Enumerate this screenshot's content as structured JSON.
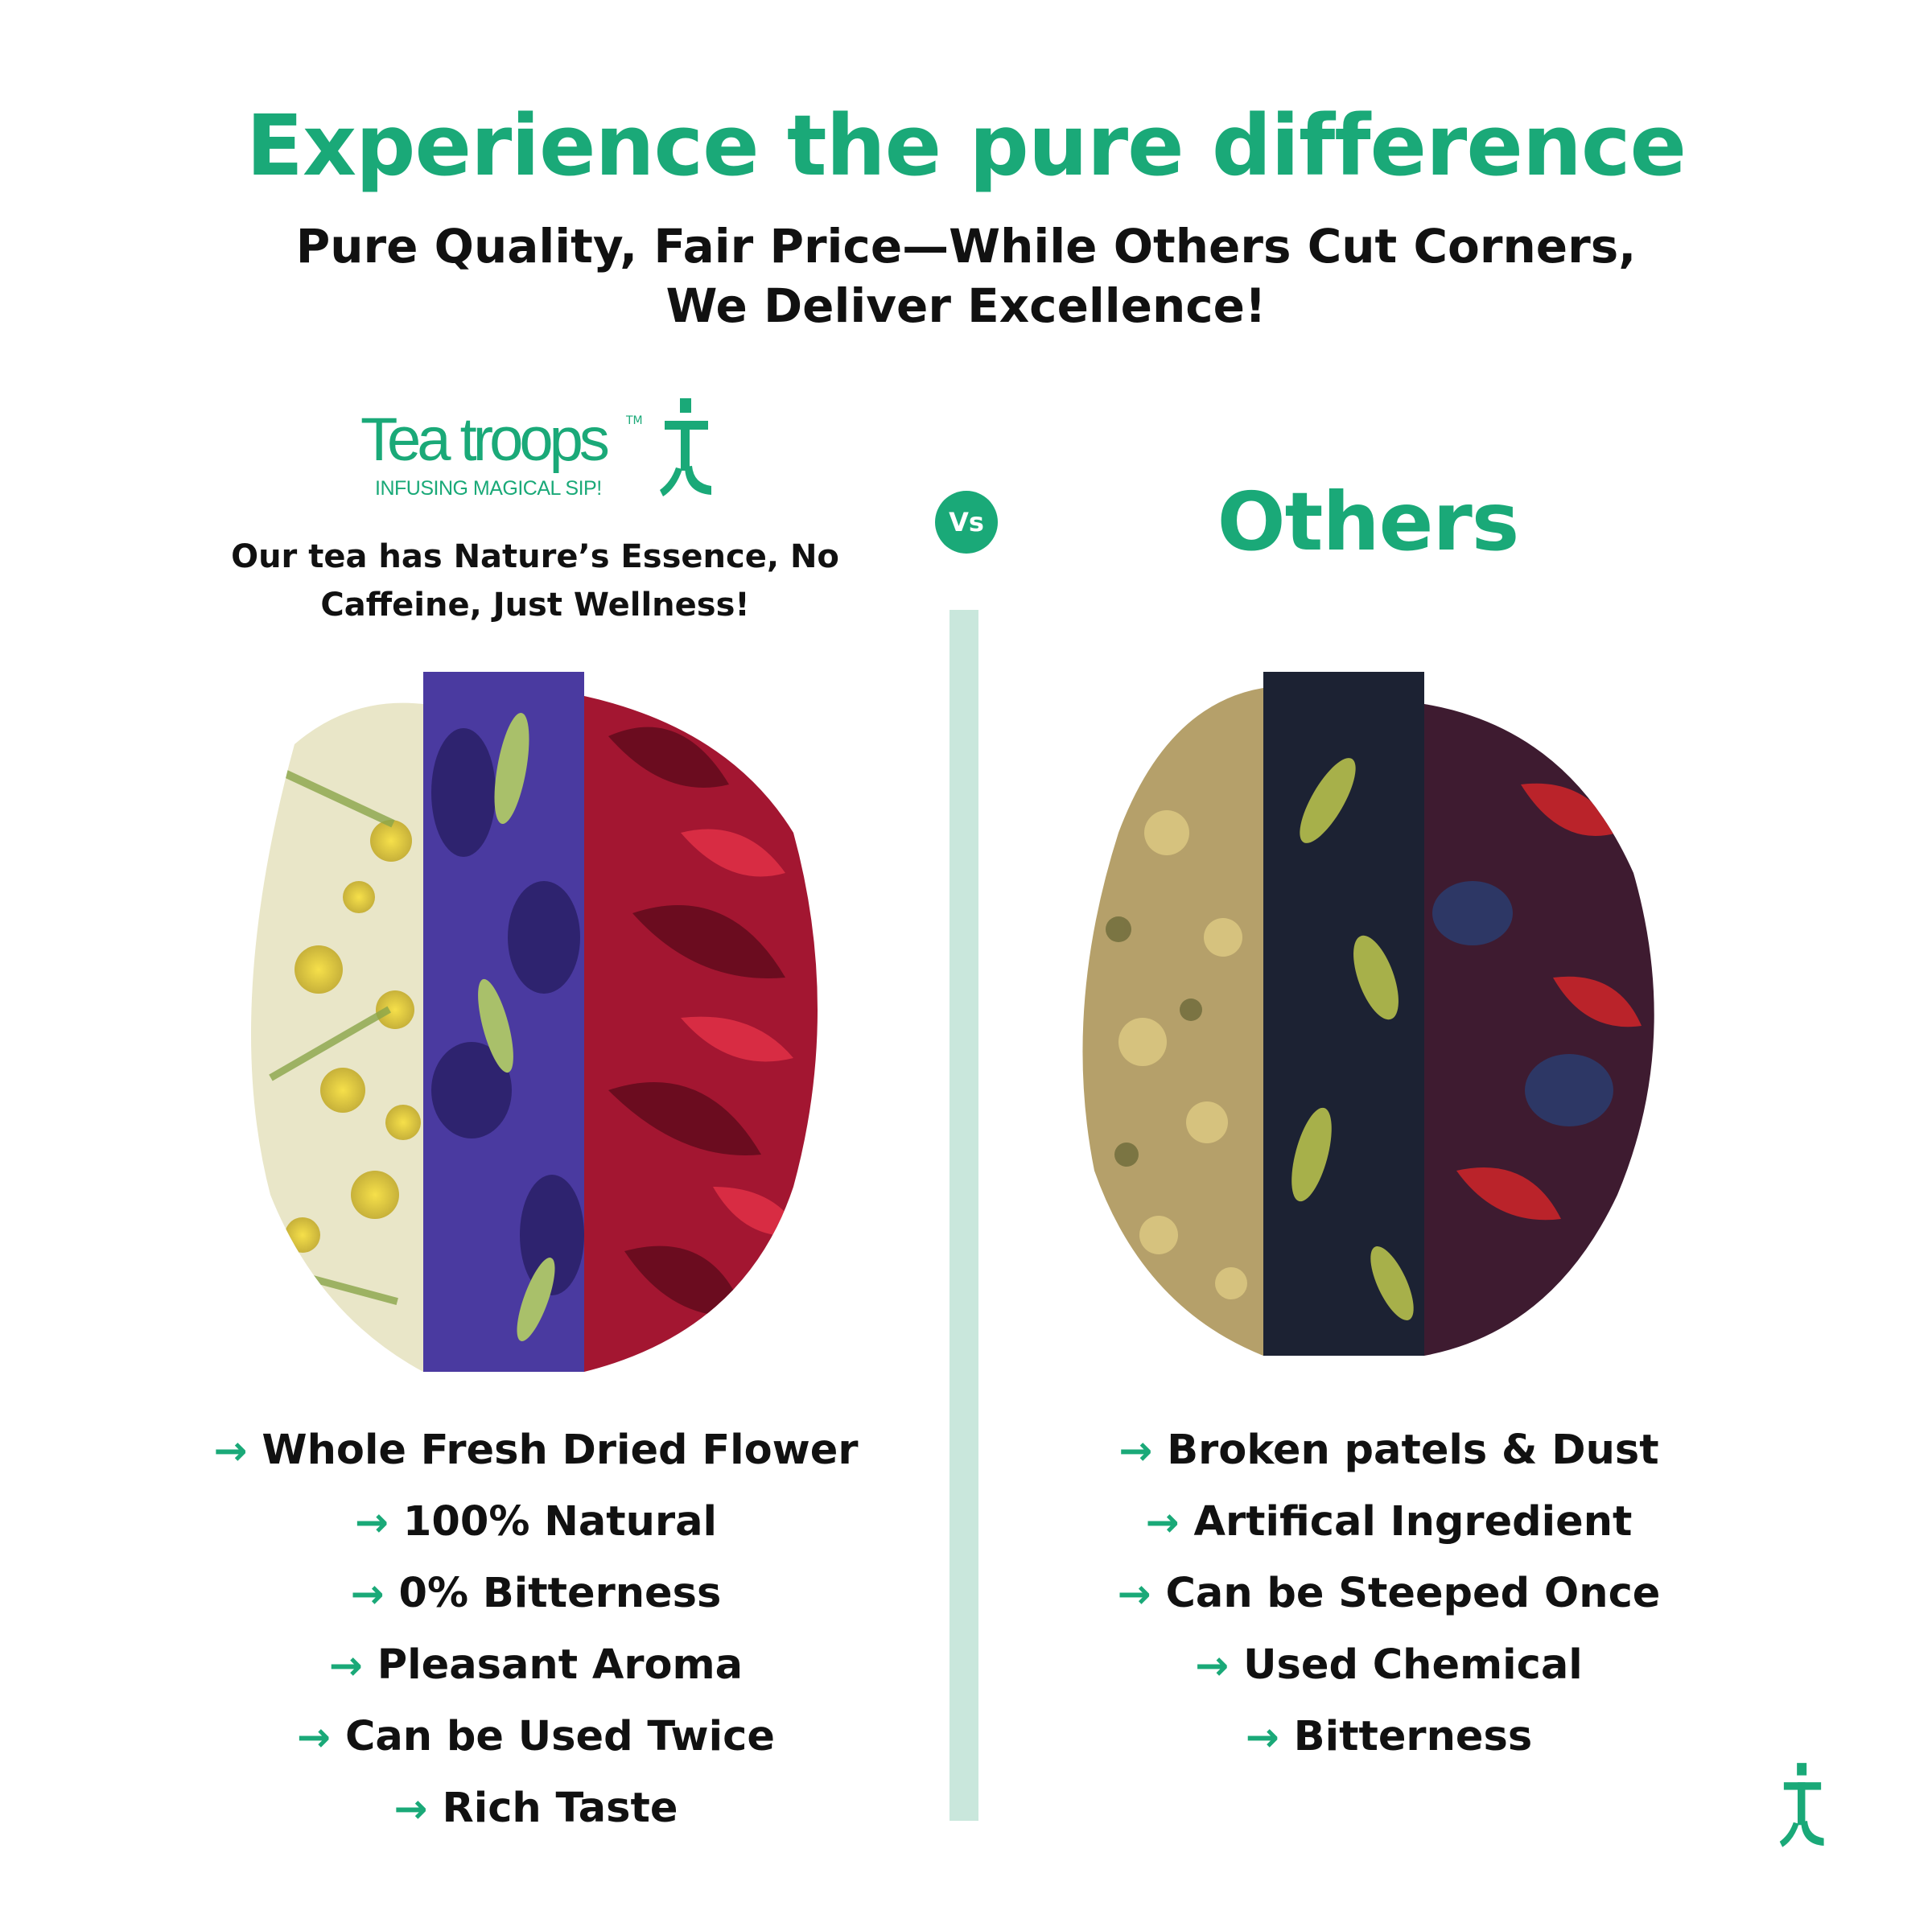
{
  "header": {
    "title": "Experience the pure difference",
    "subtitle_line1": "Pure Quality, Fair Price—While Others Cut Corners,",
    "subtitle_line2": "We Deliver Excellence!"
  },
  "brand": {
    "name": "Tea troops",
    "trademark": "TM",
    "tagline": "INFUSING MAGICAL SIP!",
    "description": "Our tea has Nature’s Essence, No Caffeine, Just Wellness!"
  },
  "vs": {
    "label": "Vs"
  },
  "others": {
    "title": "Others"
  },
  "ours_features": [
    "Whole Fresh Dried Flower",
    "100% Natural",
    "0% Bitterness",
    "Pleasant Aroma",
    "Can be Used Twice",
    "Rich Taste"
  ],
  "others_features": [
    "Broken patels & Dust",
    "Artifical Ingredient",
    "Can be Steeped Once",
    "Used Chemical",
    "Bitterness"
  ],
  "colors": {
    "accent": "#1aa978",
    "divider": "#c9e7dc",
    "text": "#111111"
  },
  "icons": {
    "bullet": "arrow-right-icon",
    "logo_mark": "teatroops-t-icon"
  }
}
